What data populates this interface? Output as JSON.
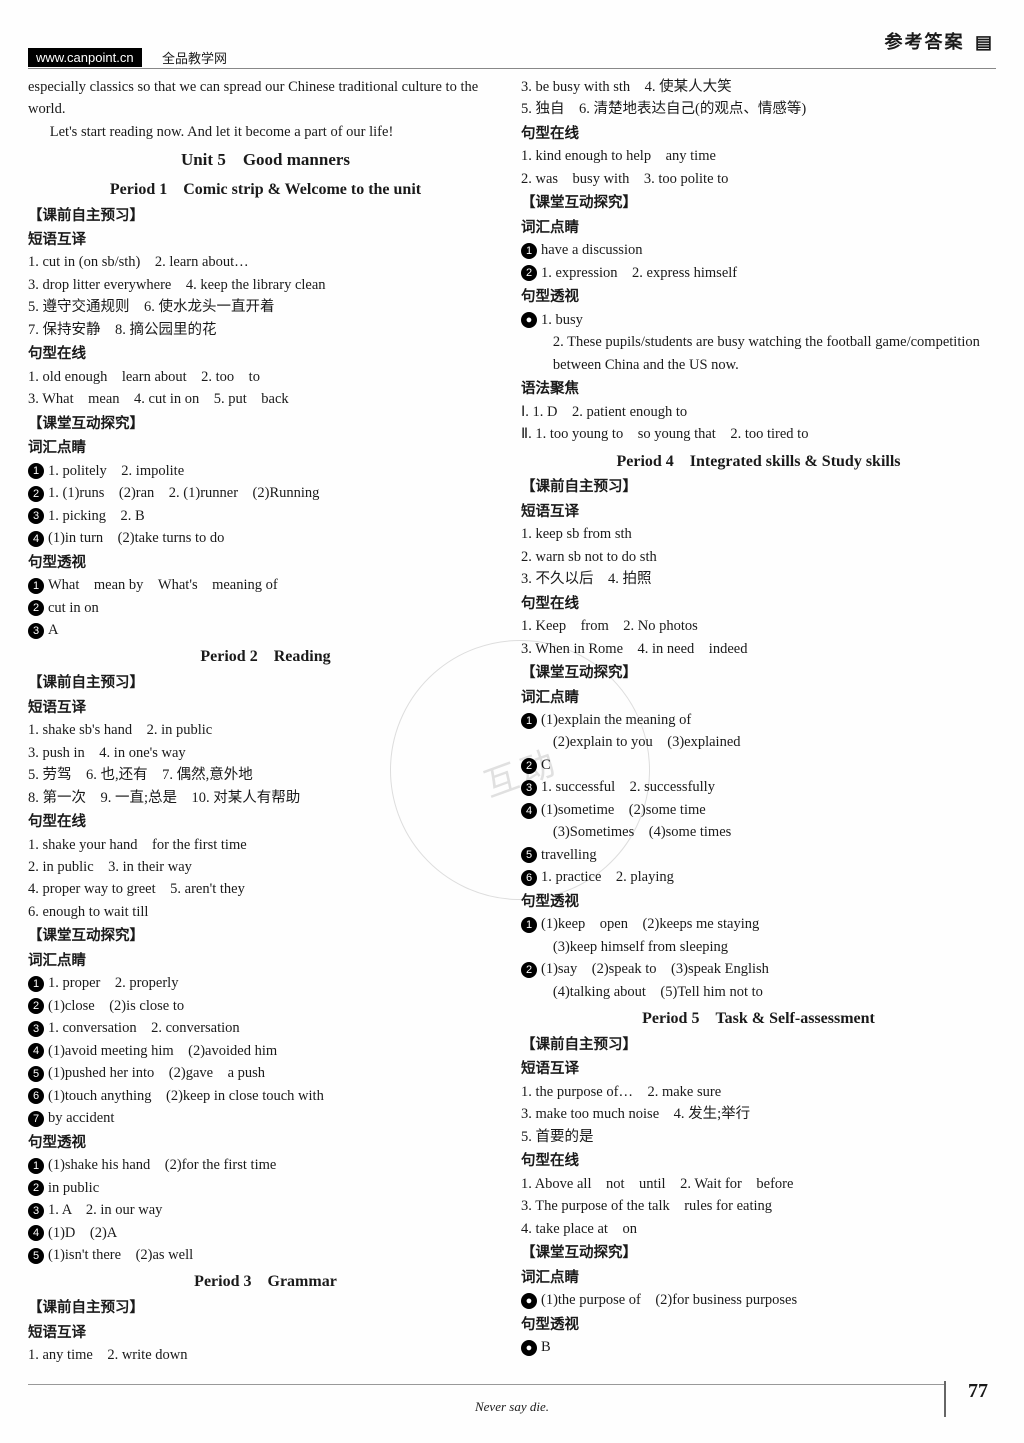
{
  "header": {
    "banner": "参考答案",
    "url": "www.canpoint.cn",
    "url_label": "全品教学网"
  },
  "intro": {
    "p1": "especially classics so that we can spread our Chinese traditional culture to the world.",
    "p2": "Let's start reading now. And let it become a part of our life!"
  },
  "unit_title": "Unit 5　Good manners",
  "period1": {
    "title": "Period 1　Comic strip & Welcome to the unit",
    "sec1": "【课前自主预习】",
    "h1": "短语互译",
    "l1": "1. cut in (on sb/sth)　2. learn about…",
    "l2": "3. drop litter everywhere　4. keep the library clean",
    "l3": "5. 遵守交通规则　6. 使水龙头一直开着",
    "l4": "7. 保持安静　8. 摘公园里的花",
    "h2": "句型在线",
    "l5": "1. old enough　learn about　2. too　to",
    "l6": "3. What　mean　4. cut in on　5. put　back",
    "sec2": "【课堂互动探究】",
    "h3": "词汇点睛",
    "c1": "1. politely　2. impolite",
    "c2": "1. (1)runs　(2)ran　2. (1)runner　(2)Running",
    "c3": "1. picking　2. B",
    "c4": "(1)in turn　(2)take turns to do",
    "h4": "句型透视",
    "c5": "What　mean by　What's　meaning of",
    "c6": "cut in on",
    "c7": "A"
  },
  "period2": {
    "title": "Period 2　Reading",
    "sec1": "【课前自主预习】",
    "h1": "短语互译",
    "l1": "1. shake sb's hand　2. in public",
    "l2": "3. push in　4. in one's way",
    "l3": "5. 劳驾　6. 也,还有　7. 偶然,意外地",
    "l4": "8. 第一次　9. 一直;总是　10. 对某人有帮助",
    "h2": "句型在线",
    "l5": "1. shake your hand　for the first time",
    "l6": "2. in public　3. in their way",
    "l7": "4. proper way to greet　5. aren't they",
    "l8": "6. enough to wait till",
    "sec2": "【课堂互动探究】",
    "h3": "词汇点睛",
    "c1": "1. proper　2. properly",
    "c2": "(1)close　(2)is close to",
    "c3": "1. conversation　2. conversation",
    "c4": "(1)avoid meeting him　(2)avoided him",
    "c5": "(1)pushed her into　(2)gave　a push",
    "c6": "(1)touch anything　(2)keep in close touch with",
    "c7": "by accident",
    "h4": "句型透视",
    "c8": "(1)shake his hand　(2)for the first time",
    "c9": "in public",
    "c10": "1. A　2. in our way",
    "c11": "(1)D　(2)A",
    "c12": "(1)isn't there　(2)as well"
  },
  "period3": {
    "title": "Period 3　Grammar",
    "sec1": "【课前自主预习】",
    "h1": "短语互译",
    "l1": "1. any time　2. write down",
    "l2": "3. be busy with sth　4. 使某人大笑",
    "l3": "5. 独自　6. 清楚地表达自己(的观点、情感等)",
    "h2": "句型在线",
    "l4": "1. kind enough to help　any time",
    "l5": "2. was　busy with　3. too polite to",
    "sec2": "【课堂互动探究】",
    "h3": "词汇点睛",
    "c1": "have a discussion",
    "c2": "1. expression　2. express himself",
    "h4": "句型透视",
    "c3": "1. busy",
    "c3b": "2. These pupils/students are busy watching the football game/competition between China and the US now.",
    "h5": "语法聚焦",
    "c4": "Ⅰ. 1. D　2. patient enough to",
    "c5": "Ⅱ. 1. too young to　so young that　2. too tired to"
  },
  "period4": {
    "title": "Period 4　Integrated skills & Study skills",
    "sec1": "【课前自主预习】",
    "h1": "短语互译",
    "l1": "1. keep sb from sth",
    "l2": "2. warn sb not to do sth",
    "l3": "3. 不久以后　4. 拍照",
    "h2": "句型在线",
    "l4": "1. Keep　from　2. No photos",
    "l5": "3. When in Rome　4. in need　indeed",
    "sec2": "【课堂互动探究】",
    "h3": "词汇点睛",
    "c1": "(1)explain the meaning of",
    "c1b": "(2)explain to you　(3)explained",
    "c2": "C",
    "c3": "1. successful　2. successfully",
    "c4": "(1)sometime　(2)some time",
    "c4b": "(3)Sometimes　(4)some times",
    "c5": "travelling",
    "c6": "1. practice　2. playing",
    "h4": "句型透视",
    "c7": "(1)keep　open　(2)keeps me staying",
    "c7b": "(3)keep himself from sleeping",
    "c8": "(1)say　(2)speak to　(3)speak English",
    "c8b": "(4)talking about　(5)Tell him not to"
  },
  "period5": {
    "title": "Period 5　Task & Self-assessment",
    "sec1": "【课前自主预习】",
    "h1": "短语互译",
    "l1": "1. the purpose of…　2. make sure",
    "l2": "3. make too much noise　4. 发生;举行",
    "l3": "5. 首要的是",
    "h2": "句型在线",
    "l4": "1. Above all　not　until　2. Wait for　before",
    "l5": "3. The purpose of the talk　rules for eating",
    "l6": "4. take place at　on",
    "sec2": "【课堂互动探究】",
    "h3": "词汇点睛",
    "c1": "(1)the purpose of　(2)for business purposes",
    "h4": "句型透视",
    "c2": "B"
  },
  "footer": {
    "motto": "Never say die.",
    "page": "77"
  },
  "watermark": "互动"
}
